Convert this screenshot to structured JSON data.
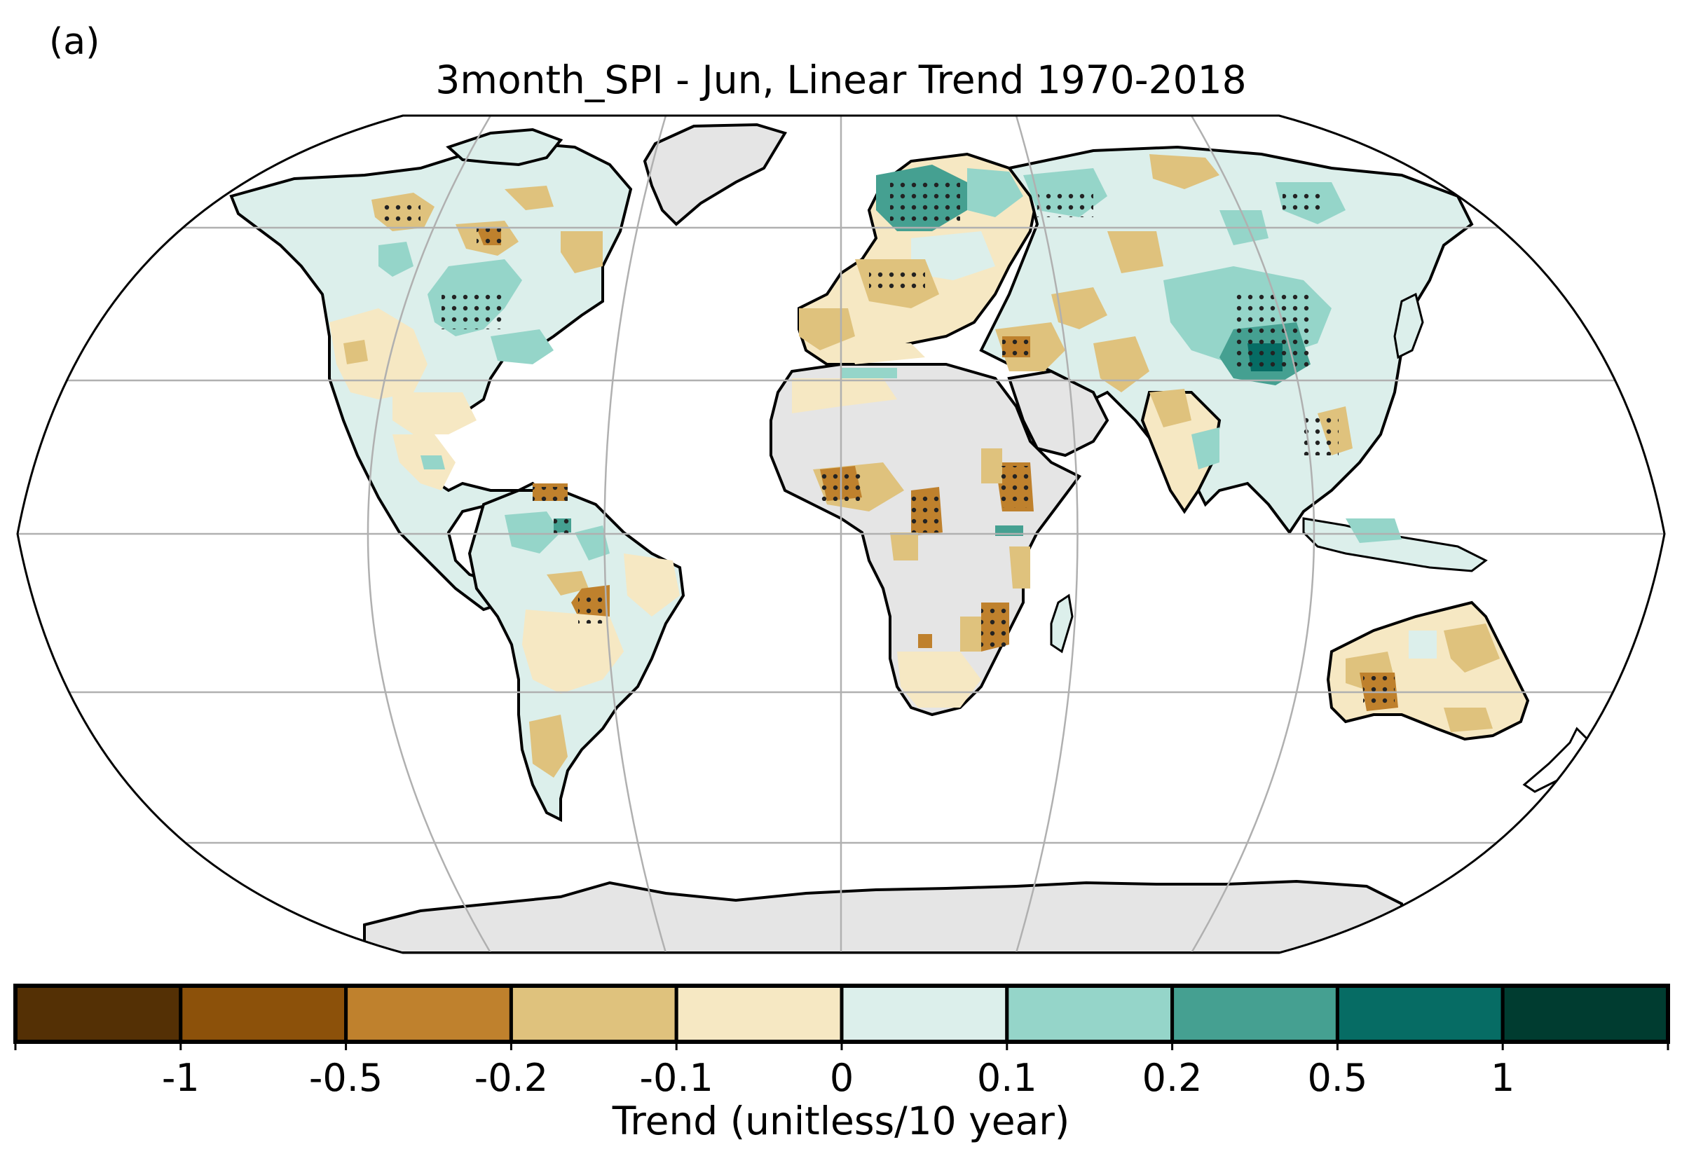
{
  "panel_label": "(a)",
  "title": "3month_SPI - Jun, Linear Trend 1970-2018",
  "map": {
    "projection": "Robinson",
    "graticule": true,
    "land_no_data_color": "#e5e5e5",
    "ocean_color": "#ffffff",
    "stippling": "black dots mark grid cells with significant trend"
  },
  "colorbar": {
    "label": "Trend (unitless/10 year)",
    "ticks": [
      "-1",
      "-0.5",
      "-0.2",
      "-0.1",
      "0",
      "0.1",
      "0.2",
      "0.5",
      "1"
    ],
    "colors": [
      "#543005",
      "#8c510a",
      "#bf812d",
      "#dfc27d",
      "#f6e8c3",
      "#dcefeb",
      "#95d5c9",
      "#45a091",
      "#066c64",
      "#003c30"
    ]
  }
}
